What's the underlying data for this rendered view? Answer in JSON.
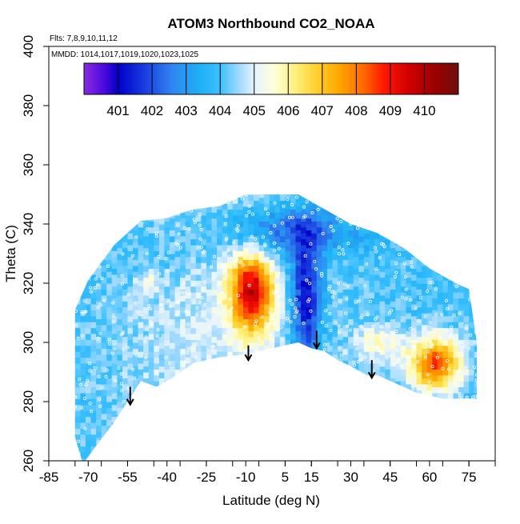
{
  "chart_data": {
    "type": "heatmap",
    "title": "ATOM3 Northbound CO2_NOAA",
    "flights_label": "Flts: 7,8,9,10,11,12",
    "dates_label": "MMDD: 1014,1017,1019,1020,1023,1025",
    "xlabel": "Latitude (deg N)",
    "ylabel": "Theta (C)",
    "xlim": [
      -85,
      85
    ],
    "ylim": [
      260,
      400
    ],
    "x_ticks": [
      -85,
      -70,
      -55,
      -40,
      -25,
      -10,
      5,
      15,
      30,
      45,
      60,
      75
    ],
    "y_ticks": [
      260,
      280,
      300,
      320,
      340,
      360,
      380,
      400
    ],
    "colorbar": {
      "range": [
        400,
        411
      ],
      "labels": [
        401,
        402,
        403,
        404,
        405,
        406,
        407,
        408,
        409,
        410
      ],
      "stops": [
        {
          "value": 400.0,
          "color": "#8a2be2"
        },
        {
          "value": 400.6,
          "color": "#4b0adc"
        },
        {
          "value": 401.0,
          "color": "#0000c8"
        },
        {
          "value": 401.8,
          "color": "#1a3ee0"
        },
        {
          "value": 402.6,
          "color": "#2f86f0"
        },
        {
          "value": 403.4,
          "color": "#1fb0f5"
        },
        {
          "value": 404.0,
          "color": "#3cc0ff"
        },
        {
          "value": 404.6,
          "color": "#a8dcff"
        },
        {
          "value": 405.0,
          "color": "#e4f3ff"
        },
        {
          "value": 405.6,
          "color": "#ffffd8"
        },
        {
          "value": 406.2,
          "color": "#fff080"
        },
        {
          "value": 406.8,
          "color": "#ffd230"
        },
        {
          "value": 407.5,
          "color": "#ffa600"
        },
        {
          "value": 408.2,
          "color": "#ff6a00"
        },
        {
          "value": 408.8,
          "color": "#ff1a00"
        },
        {
          "value": 409.5,
          "color": "#d40000"
        },
        {
          "value": 410.3,
          "color": "#9c0000"
        },
        {
          "value": 411.0,
          "color": "#6e0f0f"
        }
      ]
    },
    "coverage_envelope": {
      "description": "Upper and lower theta bounds (C) of the observed curtain by latitude",
      "upper": [
        [
          -75,
          311
        ],
        [
          -70,
          321
        ],
        [
          -65,
          327
        ],
        [
          -60,
          333
        ],
        [
          -55,
          337
        ],
        [
          -50,
          341
        ],
        [
          -40,
          342
        ],
        [
          -30,
          345
        ],
        [
          -20,
          346
        ],
        [
          -10,
          350
        ],
        [
          0,
          350
        ],
        [
          10,
          350
        ],
        [
          20,
          345
        ],
        [
          30,
          340
        ],
        [
          40,
          337
        ],
        [
          50,
          332
        ],
        [
          60,
          325
        ],
        [
          70,
          320
        ],
        [
          75,
          318
        ],
        [
          78,
          300
        ]
      ],
      "lower": [
        [
          -75,
          268
        ],
        [
          -72,
          259
        ],
        [
          -67,
          265
        ],
        [
          -61,
          272
        ],
        [
          -55,
          280
        ],
        [
          -50,
          287
        ],
        [
          -44,
          285
        ],
        [
          -38,
          288
        ],
        [
          -30,
          293
        ],
        [
          -20,
          295
        ],
        [
          -10,
          296
        ],
        [
          0,
          298
        ],
        [
          10,
          300
        ],
        [
          15,
          298
        ],
        [
          20,
          297
        ],
        [
          25,
          294
        ],
        [
          30,
          292
        ],
        [
          36,
          289
        ],
        [
          40,
          289
        ],
        [
          45,
          287
        ],
        [
          50,
          285
        ],
        [
          55,
          283
        ],
        [
          60,
          282
        ],
        [
          65,
          281
        ],
        [
          70,
          281
        ],
        [
          75,
          281
        ],
        [
          78,
          281
        ]
      ]
    },
    "co2_features": [
      {
        "name": "high CO2 plume",
        "lat": -8,
        "theta": 317,
        "lat_half_width": 8,
        "theta_half_width": 13,
        "co2": 409.3
      },
      {
        "name": "deep low CO2 tongue",
        "lat": 13,
        "theta": 315,
        "lat_half_width": 6,
        "theta_half_width": 22,
        "co2": 400.9
      },
      {
        "name": "upper low CO2 layer",
        "lat": 5,
        "theta": 338,
        "lat_half_width": 28,
        "theta_half_width": 9,
        "co2": 402.1
      },
      {
        "name": "northern high CO2 cells",
        "lat": 62,
        "theta": 293,
        "lat_half_width": 10,
        "theta_half_width": 9,
        "co2": 408.6
      },
      {
        "name": "southern mid cell",
        "lat": -47,
        "theta": 321,
        "lat_half_width": 4,
        "theta_half_width": 3,
        "co2": 405.6
      },
      {
        "name": "midlatitude moderate band",
        "lat": 40,
        "theta": 300,
        "lat_half_width": 9,
        "theta_half_width": 6,
        "co2": 405.8
      }
    ],
    "arrows": [
      {
        "lat": -54,
        "theta_top": 285,
        "theta_tip": 279
      },
      {
        "lat": -9,
        "theta_top": 299,
        "theta_tip": 294
      },
      {
        "lat": 17,
        "theta_top": 304,
        "theta_tip": 298
      },
      {
        "lat": 38,
        "theta_top": 294,
        "theta_tip": 288
      }
    ]
  }
}
